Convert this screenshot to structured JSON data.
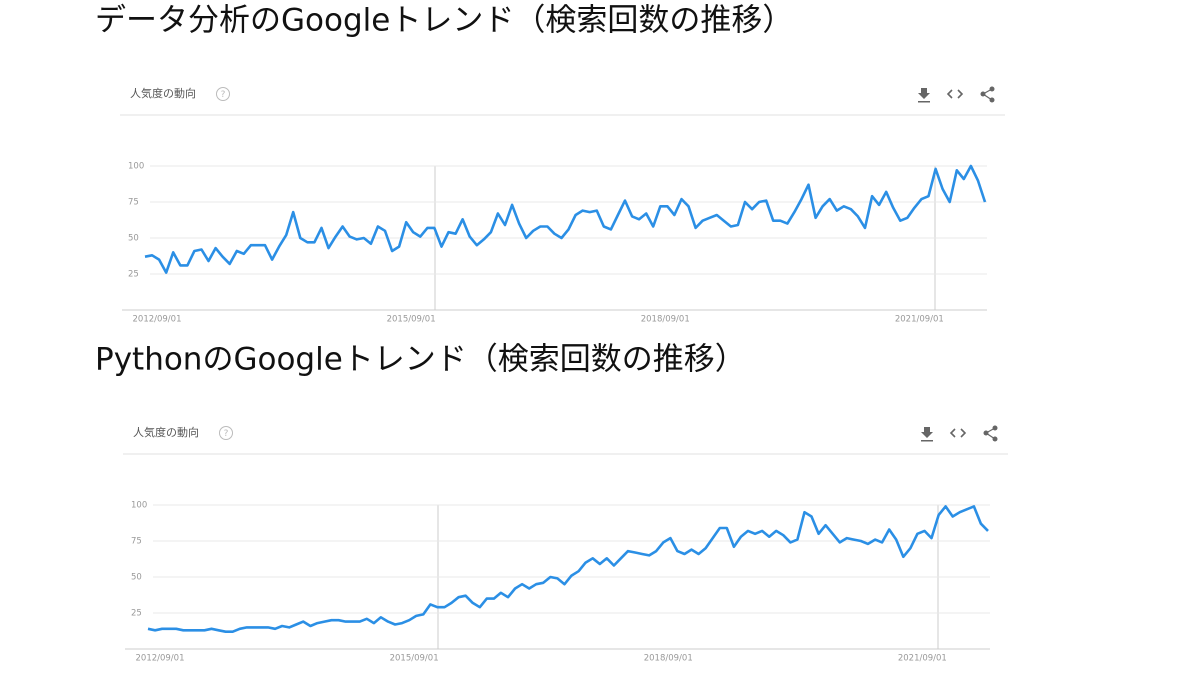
{
  "chart_data": [
    {
      "type": "line",
      "title": "データ分析のGoogleトレンド（検索回数の推移）",
      "panel_title": "人気度の動向",
      "categories": [
        "2012/09/01",
        null,
        null,
        null,
        null,
        null,
        null,
        null,
        null,
        null,
        null,
        null,
        null,
        null,
        null,
        null,
        null,
        null,
        null,
        null,
        null,
        null,
        null,
        null,
        null,
        null,
        null,
        null,
        null,
        null,
        null,
        null,
        null,
        null,
        null,
        null,
        "2015/09/01",
        null,
        null,
        null,
        null,
        null,
        null,
        null,
        null,
        null,
        null,
        null,
        null,
        null,
        null,
        null,
        null,
        null,
        null,
        null,
        null,
        null,
        null,
        null,
        null,
        null,
        null,
        null,
        null,
        null,
        null,
        null,
        null,
        null,
        null,
        null,
        "2018/09/01",
        null,
        null,
        null,
        null,
        null,
        null,
        null,
        null,
        null,
        null,
        null,
        null,
        null,
        null,
        null,
        null,
        null,
        null,
        null,
        null,
        null,
        null,
        null,
        null,
        null,
        null,
        null,
        null,
        null,
        null,
        null,
        null,
        null,
        null,
        null,
        "2021/09/01",
        null,
        null,
        null,
        null,
        null,
        null,
        null,
        null,
        null,
        null,
        null
      ],
      "values": [
        37,
        38,
        35,
        26,
        40,
        31,
        31,
        41,
        42,
        34,
        43,
        37,
        32,
        41,
        39,
        45,
        45,
        45,
        35,
        44,
        52,
        68,
        50,
        47,
        47,
        57,
        43,
        51,
        58,
        51,
        49,
        50,
        46,
        58,
        55,
        41,
        44,
        61,
        54,
        51,
        57,
        57,
        44,
        54,
        53,
        63,
        51,
        45,
        49,
        54,
        67,
        59,
        73,
        60,
        50,
        55,
        58,
        58,
        53,
        50,
        56,
        66,
        69,
        68,
        69,
        58,
        56,
        66,
        76,
        65,
        63,
        67,
        58,
        72,
        72,
        66,
        77,
        72,
        57,
        62,
        64,
        66,
        62,
        58,
        59,
        75,
        70,
        75,
        76,
        62,
        62,
        60,
        68,
        77,
        87,
        64,
        72,
        77,
        69,
        72,
        70,
        65,
        57,
        79,
        73,
        82,
        71,
        62,
        64,
        71,
        77,
        79,
        98,
        84,
        75,
        97,
        91,
        100,
        90,
        75
      ],
      "color": "#2b8fe5",
      "ylim": [
        0,
        100
      ],
      "yticks": [
        25,
        50,
        75,
        100
      ],
      "grid": true
    },
    {
      "type": "line",
      "title": "PythonのGoogleトレンド（検索回数の推移）",
      "panel_title": "人気度の動向",
      "categories": [
        "2012/09/01",
        null,
        null,
        null,
        null,
        null,
        null,
        null,
        null,
        null,
        null,
        null,
        null,
        null,
        null,
        null,
        null,
        null,
        null,
        null,
        null,
        null,
        null,
        null,
        null,
        null,
        null,
        null,
        null,
        null,
        null,
        null,
        null,
        null,
        null,
        null,
        "2015/09/01",
        null,
        null,
        null,
        null,
        null,
        null,
        null,
        null,
        null,
        null,
        null,
        null,
        null,
        null,
        null,
        null,
        null,
        null,
        null,
        null,
        null,
        null,
        null,
        null,
        null,
        null,
        null,
        null,
        null,
        null,
        null,
        null,
        null,
        null,
        null,
        "2018/09/01",
        null,
        null,
        null,
        null,
        null,
        null,
        null,
        null,
        null,
        null,
        null,
        null,
        null,
        null,
        null,
        null,
        null,
        null,
        null,
        null,
        null,
        null,
        null,
        null,
        null,
        null,
        null,
        null,
        null,
        null,
        null,
        null,
        null,
        null,
        null,
        "2021/09/01",
        null,
        null,
        null,
        null,
        null,
        null,
        null,
        null,
        null,
        null,
        null
      ],
      "values": [
        14,
        13,
        14,
        14,
        14,
        13,
        13,
        13,
        13,
        14,
        13,
        12,
        12,
        14,
        15,
        15,
        15,
        15,
        14,
        16,
        15,
        17,
        19,
        16,
        18,
        19,
        20,
        20,
        19,
        19,
        19,
        21,
        18,
        22,
        19,
        17,
        18,
        20,
        23,
        24,
        31,
        29,
        29,
        32,
        36,
        37,
        32,
        29,
        35,
        35,
        39,
        36,
        42,
        45,
        42,
        45,
        46,
        50,
        49,
        45,
        51,
        54,
        60,
        63,
        59,
        63,
        58,
        63,
        68,
        67,
        66,
        65,
        68,
        74,
        77,
        68,
        66,
        69,
        66,
        70,
        77,
        84,
        84,
        71,
        78,
        82,
        80,
        82,
        78,
        82,
        79,
        74,
        76,
        95,
        92,
        80,
        86,
        80,
        74,
        77,
        76,
        75,
        73,
        76,
        74,
        83,
        76,
        64,
        70,
        80,
        82,
        77,
        93,
        99,
        92,
        95,
        97,
        99,
        87,
        82
      ],
      "color": "#2b8fe5",
      "ylim": [
        0,
        100
      ],
      "yticks": [
        25,
        50,
        75,
        100
      ],
      "grid": true
    }
  ]
}
